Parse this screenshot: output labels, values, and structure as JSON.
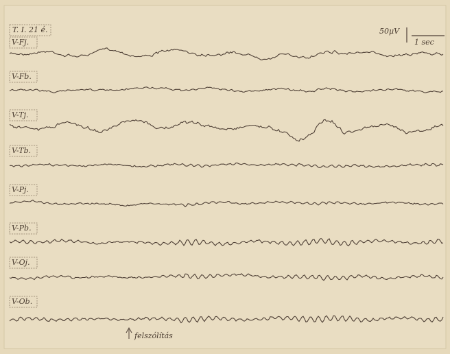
{
  "header": {
    "subject": "T. I. 21 é.",
    "amplitude_scale": "50μV",
    "time_scale": "1 sec"
  },
  "channels": [
    {
      "label": "V-Fj."
    },
    {
      "label": "V-Fb."
    },
    {
      "label": "V-Tj."
    },
    {
      "label": "V-Tb."
    },
    {
      "label": "V-Pj."
    },
    {
      "label": "V-Pb."
    },
    {
      "label": "V-Oj."
    },
    {
      "label": "V-Ob."
    }
  ],
  "annotation": "felszólítás"
}
